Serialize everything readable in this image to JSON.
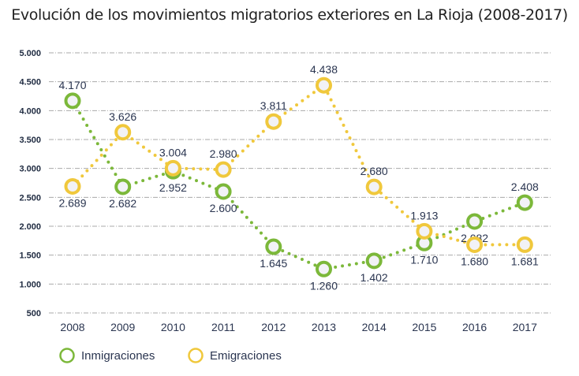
{
  "chart_data": {
    "type": "line",
    "title": "Evolución de los movimientos migratorios exteriores en La Rioja (2008-2017)",
    "x": [
      "2008",
      "2009",
      "2010",
      "2011",
      "2012",
      "2013",
      "2014",
      "2015",
      "2016",
      "2017"
    ],
    "ylim": [
      500,
      5000
    ],
    "yticks": [
      500,
      1000,
      1500,
      2000,
      2500,
      3000,
      3500,
      4000,
      4500,
      5000
    ],
    "ytick_labels": [
      "500",
      "1.000",
      "1.500",
      "2.000",
      "2.500",
      "3.000",
      "3.500",
      "4.000",
      "4.500",
      "5.000"
    ],
    "grid": true,
    "legend_position": "bottom-left",
    "series": [
      {
        "name": "Inmigraciones",
        "color": "#7cb83a",
        "values": [
          4170,
          2682,
          2952,
          2600,
          1645,
          1260,
          1402,
          1710,
          2082,
          2408
        ],
        "labels": [
          "4.170",
          "2.682",
          "2.952",
          "2.600",
          "1.645",
          "1.260",
          "1.402",
          "1.710",
          "2.082",
          "2.408"
        ]
      },
      {
        "name": "Emigraciones",
        "color": "#f0c83c",
        "values": [
          2689,
          3626,
          3004,
          2980,
          3811,
          4438,
          2680,
          1913,
          1680,
          1681
        ],
        "labels": [
          "2.689",
          "3.626",
          "3.004",
          "2.980",
          "3.811",
          "4.438",
          "2.680",
          "1.913",
          "1.680",
          "1.681"
        ]
      }
    ]
  }
}
